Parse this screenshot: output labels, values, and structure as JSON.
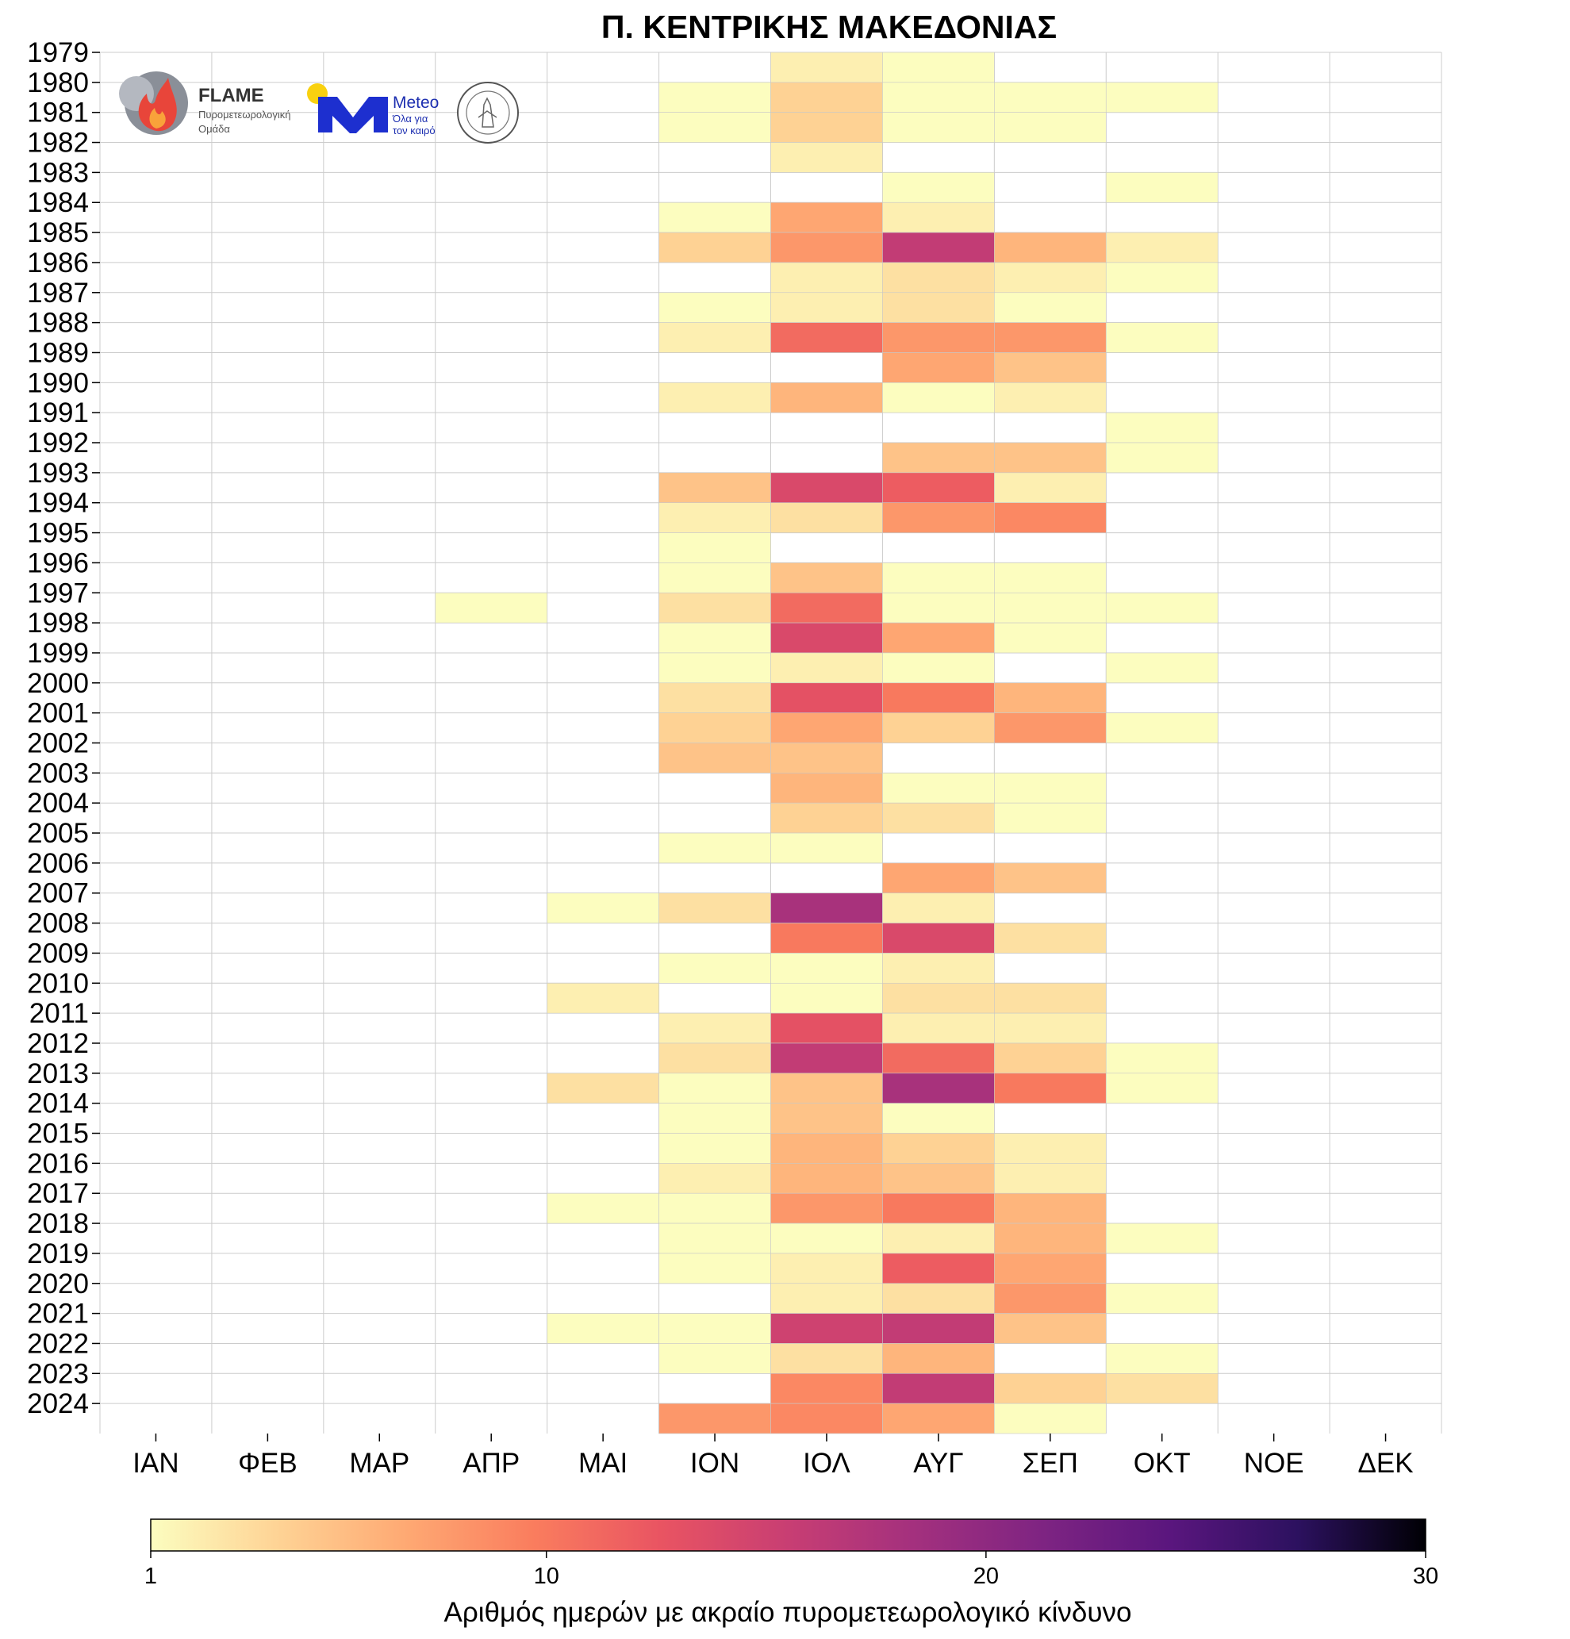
{
  "chart_data": {
    "type": "heatmap",
    "title": "Π. ΚΕΝΤΡΙΚΗΣ ΜΑΚΕΔΟΝΙΑΣ",
    "months": [
      "ΙΑΝ",
      "ΦΕΒ",
      "ΜΑΡ",
      "ΑΠΡ",
      "ΜΑΙ",
      "ΙΟΝ",
      "ΙΟΛ",
      "ΑΥΓ",
      "ΣΕΠ",
      "ΟΚΤ",
      "ΝΟΕ",
      "ΔΕΚ"
    ],
    "years": [
      "1979",
      "1980",
      "1981",
      "1982",
      "1983",
      "1984",
      "1985",
      "1986",
      "1987",
      "1988",
      "1989",
      "1990",
      "1991",
      "1992",
      "1993",
      "1994",
      "1995",
      "1996",
      "1997",
      "1998",
      "1999",
      "2000",
      "2001",
      "2002",
      "2003",
      "2004",
      "2005",
      "2006",
      "2007",
      "2008",
      "2009",
      "2010",
      "2011",
      "2012",
      "2013",
      "2014",
      "2015",
      "2016",
      "2017",
      "2018",
      "2019",
      "2020",
      "2021",
      "2022",
      "2023",
      "2024"
    ],
    "values": [
      [
        0,
        0,
        0,
        0,
        0,
        0,
        2,
        1,
        0,
        0,
        0,
        0
      ],
      [
        0,
        0,
        0,
        0,
        0,
        1,
        4,
        1,
        1,
        1,
        0,
        0
      ],
      [
        0,
        0,
        0,
        0,
        0,
        1,
        4,
        1,
        1,
        0,
        0,
        0
      ],
      [
        0,
        0,
        0,
        0,
        0,
        0,
        2,
        0,
        0,
        0,
        0,
        0
      ],
      [
        0,
        0,
        0,
        0,
        0,
        0,
        0,
        1,
        0,
        1,
        0,
        0
      ],
      [
        0,
        0,
        0,
        0,
        0,
        1,
        7,
        2,
        0,
        0,
        0,
        0
      ],
      [
        0,
        0,
        0,
        0,
        0,
        4,
        8,
        16,
        6,
        2,
        0,
        0
      ],
      [
        0,
        0,
        0,
        0,
        0,
        0,
        2,
        3,
        2,
        1,
        0,
        0
      ],
      [
        0,
        0,
        0,
        0,
        0,
        1,
        2,
        3,
        1,
        0,
        0,
        0
      ],
      [
        0,
        0,
        0,
        0,
        0,
        2,
        11,
        8,
        8,
        1,
        0,
        0
      ],
      [
        0,
        0,
        0,
        0,
        0,
        0,
        0,
        7,
        5,
        0,
        0,
        0
      ],
      [
        0,
        0,
        0,
        0,
        0,
        2,
        6,
        1,
        2,
        0,
        0,
        0
      ],
      [
        0,
        0,
        0,
        0,
        0,
        0,
        0,
        0,
        0,
        1,
        0,
        0
      ],
      [
        0,
        0,
        0,
        0,
        0,
        0,
        0,
        5,
        5,
        1,
        0,
        0
      ],
      [
        0,
        0,
        0,
        0,
        0,
        5,
        14,
        12,
        2,
        0,
        0,
        0
      ],
      [
        0,
        0,
        0,
        0,
        0,
        2,
        3,
        8,
        9,
        0,
        0,
        0
      ],
      [
        0,
        0,
        0,
        0,
        0,
        1,
        0,
        0,
        0,
        0,
        0,
        0
      ],
      [
        0,
        0,
        0,
        0,
        0,
        1,
        5,
        1,
        1,
        0,
        0,
        0
      ],
      [
        0,
        0,
        0,
        1,
        0,
        3,
        11,
        1,
        1,
        1,
        0,
        0
      ],
      [
        0,
        0,
        0,
        0,
        0,
        1,
        14,
        7,
        1,
        0,
        0,
        0
      ],
      [
        0,
        0,
        0,
        0,
        0,
        1,
        2,
        1,
        0,
        1,
        0,
        0
      ],
      [
        0,
        0,
        0,
        0,
        0,
        3,
        13,
        10,
        6,
        0,
        0,
        0
      ],
      [
        0,
        0,
        0,
        0,
        0,
        4,
        7,
        4,
        8,
        1,
        0,
        0
      ],
      [
        0,
        0,
        0,
        0,
        0,
        5,
        5,
        0,
        0,
        0,
        0,
        0
      ],
      [
        0,
        0,
        0,
        0,
        0,
        0,
        6,
        1,
        1,
        0,
        0,
        0
      ],
      [
        0,
        0,
        0,
        0,
        0,
        0,
        4,
        3,
        1,
        0,
        0,
        0
      ],
      [
        0,
        0,
        0,
        0,
        0,
        1,
        1,
        0,
        0,
        0,
        0,
        0
      ],
      [
        0,
        0,
        0,
        0,
        0,
        0,
        0,
        7,
        5,
        0,
        0,
        0
      ],
      [
        0,
        0,
        0,
        0,
        1,
        3,
        18,
        2,
        0,
        0,
        0,
        0
      ],
      [
        0,
        0,
        0,
        0,
        0,
        0,
        10,
        14,
        3,
        0,
        0,
        0
      ],
      [
        0,
        0,
        0,
        0,
        0,
        1,
        1,
        2,
        0,
        0,
        0,
        0
      ],
      [
        0,
        0,
        0,
        0,
        2,
        0,
        1,
        3,
        3,
        0,
        0,
        0
      ],
      [
        0,
        0,
        0,
        0,
        0,
        2,
        13,
        2,
        2,
        0,
        0,
        0
      ],
      [
        0,
        0,
        0,
        0,
        0,
        3,
        16,
        11,
        4,
        1,
        0,
        0
      ],
      [
        0,
        0,
        0,
        0,
        3,
        1,
        5,
        18,
        10,
        1,
        0,
        0
      ],
      [
        0,
        0,
        0,
        0,
        0,
        1,
        5,
        1,
        0,
        0,
        0,
        0
      ],
      [
        0,
        0,
        0,
        0,
        0,
        1,
        6,
        4,
        2,
        0,
        0,
        0
      ],
      [
        0,
        0,
        0,
        0,
        0,
        2,
        6,
        5,
        2,
        0,
        0,
        0
      ],
      [
        0,
        0,
        0,
        0,
        1,
        1,
        8,
        10,
        6,
        0,
        0,
        0
      ],
      [
        0,
        0,
        0,
        0,
        0,
        1,
        1,
        2,
        6,
        1,
        0,
        0
      ],
      [
        0,
        0,
        0,
        0,
        0,
        1,
        2,
        12,
        7,
        0,
        0,
        0
      ],
      [
        0,
        0,
        0,
        0,
        0,
        0,
        2,
        3,
        8,
        1,
        0,
        0
      ],
      [
        0,
        0,
        0,
        0,
        1,
        1,
        15,
        16,
        5,
        0,
        0,
        0
      ],
      [
        0,
        0,
        0,
        0,
        0,
        1,
        3,
        6,
        0,
        1,
        0,
        0
      ],
      [
        0,
        0,
        0,
        0,
        0,
        0,
        9,
        16,
        4,
        3,
        0,
        0
      ],
      [
        0,
        0,
        0,
        0,
        0,
        8,
        9,
        7,
        1,
        0,
        0,
        0
      ]
    ],
    "colorbar": {
      "min": 1,
      "max": 30,
      "ticks": [
        1,
        10,
        20,
        30
      ],
      "colormap": "magma_r",
      "label": "Αριθμός ημερών με ακραίο πυρομετεωρολογικό κίνδυνο"
    },
    "xlabel": "",
    "ylabel": ""
  },
  "logos": {
    "flame_name": "FLAME",
    "flame_sub1": "Πυρομετεωρολογική",
    "flame_sub2": "Ομάδα",
    "meteo_name": "Meteo",
    "meteo_sub1": "Όλα για",
    "meteo_sub2": "τον καιρό"
  }
}
